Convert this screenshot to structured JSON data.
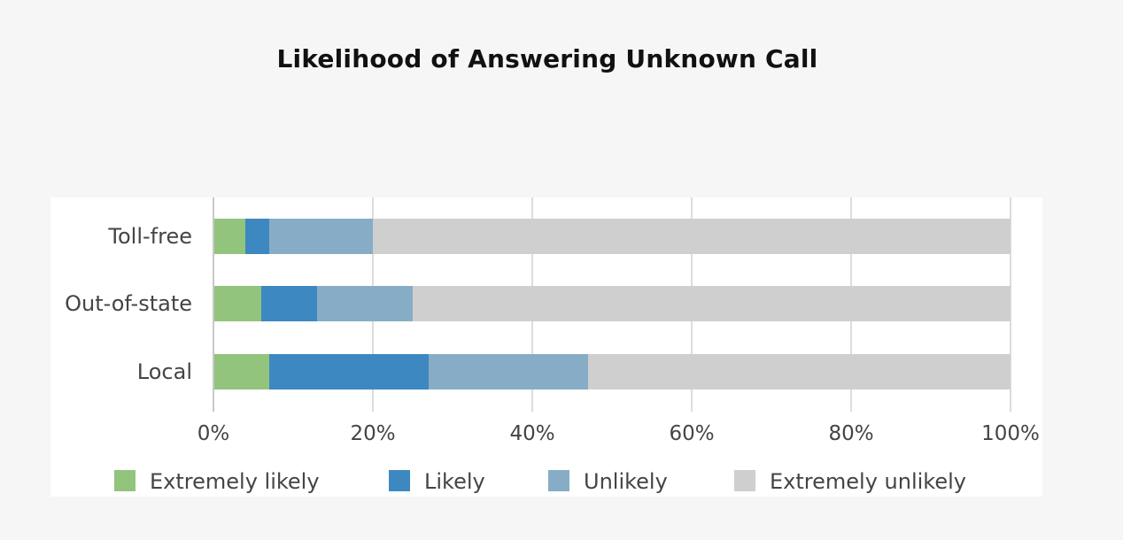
{
  "title": "Likelihood of Answering Unknown Call",
  "chart_data": {
    "type": "bar",
    "orientation": "horizontal",
    "stacked": true,
    "title": "Likelihood of Answering Unknown Call",
    "categories": [
      "Toll-free",
      "Out-of-state",
      "Local"
    ],
    "series": [
      {
        "name": "Extremely likely",
        "color": "#93c47d",
        "values": [
          4,
          6,
          7
        ]
      },
      {
        "name": "Likely",
        "color": "#3d88c0",
        "values": [
          3,
          7,
          20
        ]
      },
      {
        "name": "Unlikely",
        "color": "#87adc6",
        "values": [
          13,
          12,
          20
        ]
      },
      {
        "name": "Extremely unlikely",
        "color": "#cfcfcf",
        "values": [
          80,
          75,
          53
        ]
      }
    ],
    "xlim": [
      0,
      100
    ],
    "x_ticks": [
      "0%",
      "20%",
      "40%",
      "60%",
      "80%",
      "100%"
    ],
    "xlabel": "",
    "ylabel": "",
    "grid": true,
    "legend_position": "bottom"
  }
}
